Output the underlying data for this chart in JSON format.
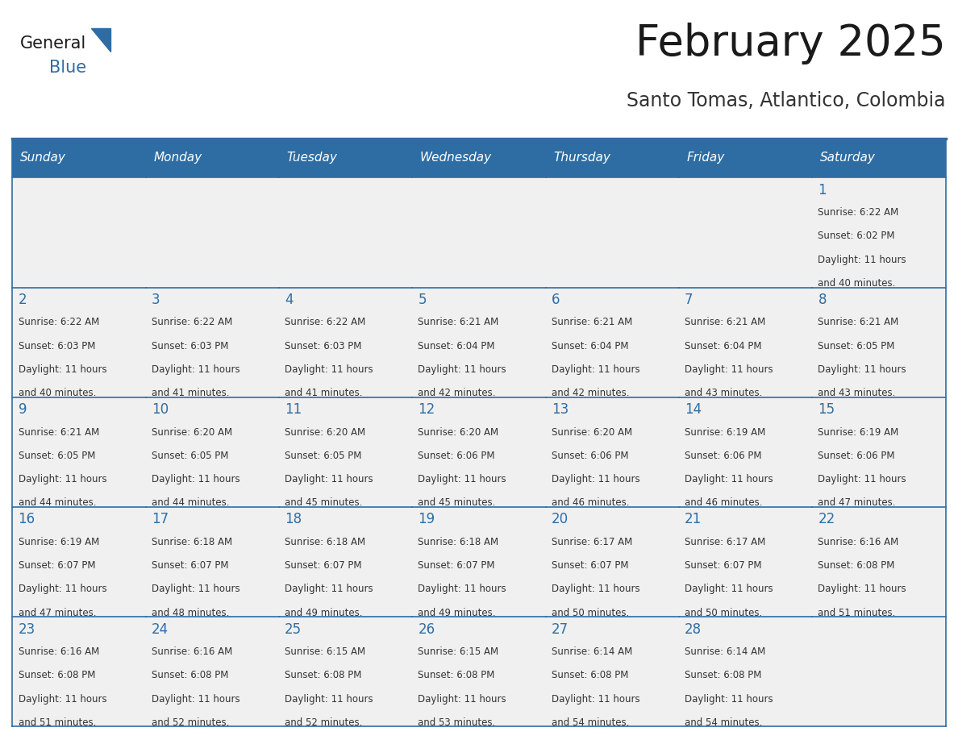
{
  "title": "February 2025",
  "subtitle": "Santo Tomas, Atlantico, Colombia",
  "header_bg_color": "#2E6DA4",
  "header_text_color": "#FFFFFF",
  "cell_bg_color": "#F0F0F0",
  "border_color": "#2E6DA4",
  "title_color": "#1a1a1a",
  "subtitle_color": "#333333",
  "day_number_color": "#2E6DA4",
  "cell_text_color": "#333333",
  "days_of_week": [
    "Sunday",
    "Monday",
    "Tuesday",
    "Wednesday",
    "Thursday",
    "Friday",
    "Saturday"
  ],
  "calendar": [
    [
      {
        "day": null,
        "sunrise": null,
        "sunset": null,
        "daylight": null
      },
      {
        "day": null,
        "sunrise": null,
        "sunset": null,
        "daylight": null
      },
      {
        "day": null,
        "sunrise": null,
        "sunset": null,
        "daylight": null
      },
      {
        "day": null,
        "sunrise": null,
        "sunset": null,
        "daylight": null
      },
      {
        "day": null,
        "sunrise": null,
        "sunset": null,
        "daylight": null
      },
      {
        "day": null,
        "sunrise": null,
        "sunset": null,
        "daylight": null
      },
      {
        "day": 1,
        "sunrise": "6:22 AM",
        "sunset": "6:02 PM",
        "daylight_line1": "Daylight: 11 hours",
        "daylight_line2": "and 40 minutes."
      }
    ],
    [
      {
        "day": 2,
        "sunrise": "6:22 AM",
        "sunset": "6:03 PM",
        "daylight_line1": "Daylight: 11 hours",
        "daylight_line2": "and 40 minutes."
      },
      {
        "day": 3,
        "sunrise": "6:22 AM",
        "sunset": "6:03 PM",
        "daylight_line1": "Daylight: 11 hours",
        "daylight_line2": "and 41 minutes."
      },
      {
        "day": 4,
        "sunrise": "6:22 AM",
        "sunset": "6:03 PM",
        "daylight_line1": "Daylight: 11 hours",
        "daylight_line2": "and 41 minutes."
      },
      {
        "day": 5,
        "sunrise": "6:21 AM",
        "sunset": "6:04 PM",
        "daylight_line1": "Daylight: 11 hours",
        "daylight_line2": "and 42 minutes."
      },
      {
        "day": 6,
        "sunrise": "6:21 AM",
        "sunset": "6:04 PM",
        "daylight_line1": "Daylight: 11 hours",
        "daylight_line2": "and 42 minutes."
      },
      {
        "day": 7,
        "sunrise": "6:21 AM",
        "sunset": "6:04 PM",
        "daylight_line1": "Daylight: 11 hours",
        "daylight_line2": "and 43 minutes."
      },
      {
        "day": 8,
        "sunrise": "6:21 AM",
        "sunset": "6:05 PM",
        "daylight_line1": "Daylight: 11 hours",
        "daylight_line2": "and 43 minutes."
      }
    ],
    [
      {
        "day": 9,
        "sunrise": "6:21 AM",
        "sunset": "6:05 PM",
        "daylight_line1": "Daylight: 11 hours",
        "daylight_line2": "and 44 minutes."
      },
      {
        "day": 10,
        "sunrise": "6:20 AM",
        "sunset": "6:05 PM",
        "daylight_line1": "Daylight: 11 hours",
        "daylight_line2": "and 44 minutes."
      },
      {
        "day": 11,
        "sunrise": "6:20 AM",
        "sunset": "6:05 PM",
        "daylight_line1": "Daylight: 11 hours",
        "daylight_line2": "and 45 minutes."
      },
      {
        "day": 12,
        "sunrise": "6:20 AM",
        "sunset": "6:06 PM",
        "daylight_line1": "Daylight: 11 hours",
        "daylight_line2": "and 45 minutes."
      },
      {
        "day": 13,
        "sunrise": "6:20 AM",
        "sunset": "6:06 PM",
        "daylight_line1": "Daylight: 11 hours",
        "daylight_line2": "and 46 minutes."
      },
      {
        "day": 14,
        "sunrise": "6:19 AM",
        "sunset": "6:06 PM",
        "daylight_line1": "Daylight: 11 hours",
        "daylight_line2": "and 46 minutes."
      },
      {
        "day": 15,
        "sunrise": "6:19 AM",
        "sunset": "6:06 PM",
        "daylight_line1": "Daylight: 11 hours",
        "daylight_line2": "and 47 minutes."
      }
    ],
    [
      {
        "day": 16,
        "sunrise": "6:19 AM",
        "sunset": "6:07 PM",
        "daylight_line1": "Daylight: 11 hours",
        "daylight_line2": "and 47 minutes."
      },
      {
        "day": 17,
        "sunrise": "6:18 AM",
        "sunset": "6:07 PM",
        "daylight_line1": "Daylight: 11 hours",
        "daylight_line2": "and 48 minutes."
      },
      {
        "day": 18,
        "sunrise": "6:18 AM",
        "sunset": "6:07 PM",
        "daylight_line1": "Daylight: 11 hours",
        "daylight_line2": "and 49 minutes."
      },
      {
        "day": 19,
        "sunrise": "6:18 AM",
        "sunset": "6:07 PM",
        "daylight_line1": "Daylight: 11 hours",
        "daylight_line2": "and 49 minutes."
      },
      {
        "day": 20,
        "sunrise": "6:17 AM",
        "sunset": "6:07 PM",
        "daylight_line1": "Daylight: 11 hours",
        "daylight_line2": "and 50 minutes."
      },
      {
        "day": 21,
        "sunrise": "6:17 AM",
        "sunset": "6:07 PM",
        "daylight_line1": "Daylight: 11 hours",
        "daylight_line2": "and 50 minutes."
      },
      {
        "day": 22,
        "sunrise": "6:16 AM",
        "sunset": "6:08 PM",
        "daylight_line1": "Daylight: 11 hours",
        "daylight_line2": "and 51 minutes."
      }
    ],
    [
      {
        "day": 23,
        "sunrise": "6:16 AM",
        "sunset": "6:08 PM",
        "daylight_line1": "Daylight: 11 hours",
        "daylight_line2": "and 51 minutes."
      },
      {
        "day": 24,
        "sunrise": "6:16 AM",
        "sunset": "6:08 PM",
        "daylight_line1": "Daylight: 11 hours",
        "daylight_line2": "and 52 minutes."
      },
      {
        "day": 25,
        "sunrise": "6:15 AM",
        "sunset": "6:08 PM",
        "daylight_line1": "Daylight: 11 hours",
        "daylight_line2": "and 52 minutes."
      },
      {
        "day": 26,
        "sunrise": "6:15 AM",
        "sunset": "6:08 PM",
        "daylight_line1": "Daylight: 11 hours",
        "daylight_line2": "and 53 minutes."
      },
      {
        "day": 27,
        "sunrise": "6:14 AM",
        "sunset": "6:08 PM",
        "daylight_line1": "Daylight: 11 hours",
        "daylight_line2": "and 54 minutes."
      },
      {
        "day": 28,
        "sunrise": "6:14 AM",
        "sunset": "6:08 PM",
        "daylight_line1": "Daylight: 11 hours",
        "daylight_line2": "and 54 minutes."
      },
      {
        "day": null,
        "sunrise": null,
        "sunset": null,
        "daylight_line1": null,
        "daylight_line2": null
      }
    ]
  ],
  "logo_text1": "General",
  "logo_text2": "Blue",
  "logo_triangle_color": "#2E6DA4"
}
